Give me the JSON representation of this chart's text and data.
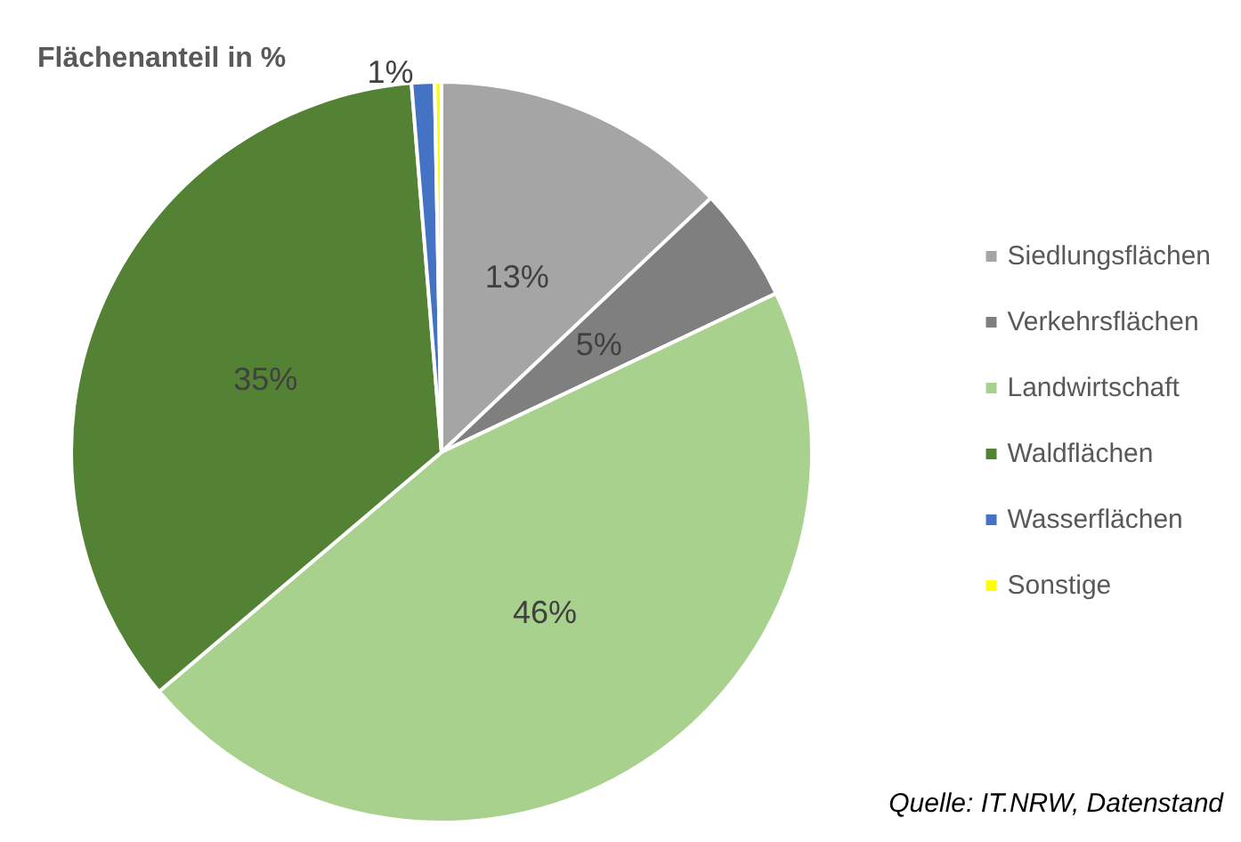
{
  "chart_data": {
    "type": "pie",
    "title": "Flächenanteil in %",
    "categories": [
      "Siedlungsflächen",
      "Verkehrsflächen",
      "Landwirtschaft",
      "Waldflächen",
      "Wasserflächen",
      "Sonstige"
    ],
    "values": [
      13,
      5,
      46,
      35,
      1,
      0.3
    ],
    "value_labels": [
      "13%",
      "5%",
      "46%",
      "35%",
      "1%",
      null
    ],
    "colors": [
      "#a5a5a5",
      "#7f7f7f",
      "#a9d18e",
      "#548235",
      "#4472c4",
      "#ffff00"
    ],
    "legend": "right",
    "annotations": [
      "Quelle: IT.NRW, Datenstand"
    ]
  }
}
